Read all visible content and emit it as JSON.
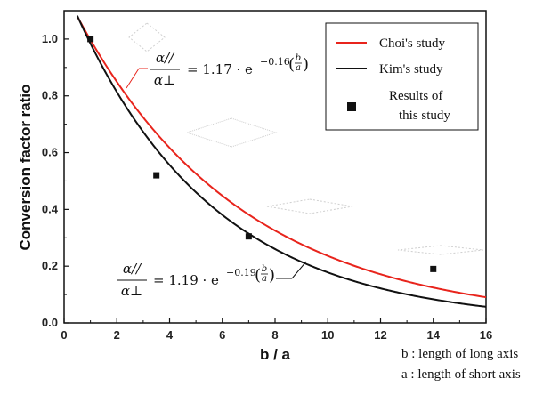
{
  "chart_data": {
    "type": "line",
    "xlabel": "b / a",
    "ylabel": "Conversion factor ratio",
    "xlim": [
      0,
      16
    ],
    "ylim": [
      0,
      1.1
    ],
    "xticks": [
      "0",
      "2",
      "4",
      "6",
      "8",
      "10",
      "12",
      "14",
      "16"
    ],
    "yticks": [
      "0.0",
      "0.2",
      "0.4",
      "0.6",
      "0.8",
      "1.0"
    ],
    "x_tick_values": [
      0,
      2,
      4,
      6,
      8,
      10,
      12,
      14,
      16
    ],
    "y_tick_values": [
      0,
      0.2,
      0.4,
      0.6,
      0.8,
      1.0
    ],
    "series": [
      {
        "name": "Choi's study",
        "color": "#e8241c",
        "style": "line",
        "function": {
          "a": 1.17,
          "k": 0.16
        }
      },
      {
        "name": "Kim's study",
        "color": "#111111",
        "style": "line",
        "function": {
          "a": 1.19,
          "k": 0.19
        }
      },
      {
        "name": "Results of this study",
        "color": "#111111",
        "style": "marker",
        "x": [
          1,
          3.5,
          7,
          14
        ],
        "y": [
          1.0,
          0.52,
          0.305,
          0.19
        ]
      }
    ],
    "legend_position": "top-right",
    "grid": false,
    "annotations": {
      "choi_equation": {
        "num": "α//",
        "den": "α⊥",
        "rhs": "= 1.17 · e",
        "exponent": "−0.16",
        "frac_num": "b",
        "frac_den": "a"
      },
      "kim_equation": {
        "num": "α//",
        "den": "α⊥",
        "rhs": "= 1.19 · e",
        "exponent": "−0.19",
        "frac_num": "b",
        "frac_den": "a"
      }
    },
    "notes": [
      "b : length of long axis",
      "a : length of short axis"
    ]
  }
}
